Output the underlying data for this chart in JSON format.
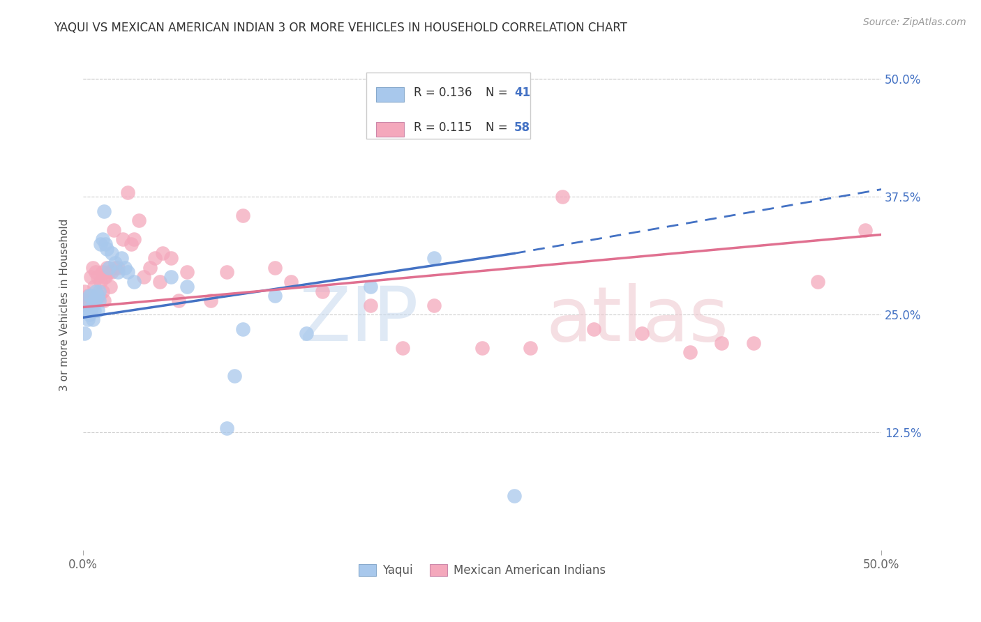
{
  "title": "YAQUI VS MEXICAN AMERICAN INDIAN 3 OR MORE VEHICLES IN HOUSEHOLD CORRELATION CHART",
  "source": "Source: ZipAtlas.com",
  "ylabel": "3 or more Vehicles in Household",
  "xlim": [
    0.0,
    0.5
  ],
  "ylim": [
    0.0,
    0.5
  ],
  "xtick_labels": [
    "0.0%",
    "50.0%"
  ],
  "ytick_labels_right": [
    "50.0%",
    "37.5%",
    "25.0%",
    "12.5%"
  ],
  "ytick_vals_right": [
    0.5,
    0.375,
    0.25,
    0.125
  ],
  "legend_label1": "Yaqui",
  "legend_label2": "Mexican American Indians",
  "color_blue": "#A8C8EC",
  "color_pink": "#F4A8BC",
  "color_blue_line": "#4472C4",
  "color_pink_line": "#E07090",
  "color_axis_text": "#4472C4",
  "background": "#FFFFFF",
  "yaqui_x": [
    0.001,
    0.002,
    0.003,
    0.003,
    0.004,
    0.004,
    0.005,
    0.005,
    0.006,
    0.006,
    0.007,
    0.007,
    0.008,
    0.008,
    0.009,
    0.009,
    0.01,
    0.01,
    0.011,
    0.012,
    0.013,
    0.014,
    0.015,
    0.016,
    0.018,
    0.02,
    0.022,
    0.024,
    0.026,
    0.028,
    0.032,
    0.055,
    0.065,
    0.09,
    0.095,
    0.1,
    0.12,
    0.14,
    0.18,
    0.22,
    0.27
  ],
  "yaqui_y": [
    0.23,
    0.26,
    0.255,
    0.245,
    0.27,
    0.25,
    0.27,
    0.255,
    0.26,
    0.245,
    0.255,
    0.265,
    0.275,
    0.265,
    0.255,
    0.27,
    0.275,
    0.265,
    0.325,
    0.33,
    0.36,
    0.325,
    0.32,
    0.3,
    0.315,
    0.305,
    0.295,
    0.31,
    0.3,
    0.295,
    0.285,
    0.29,
    0.28,
    0.13,
    0.185,
    0.235,
    0.27,
    0.23,
    0.28,
    0.31,
    0.058
  ],
  "mai_x": [
    0.001,
    0.002,
    0.003,
    0.004,
    0.005,
    0.005,
    0.006,
    0.007,
    0.008,
    0.008,
    0.009,
    0.009,
    0.01,
    0.011,
    0.012,
    0.012,
    0.013,
    0.013,
    0.014,
    0.015,
    0.016,
    0.017,
    0.018,
    0.019,
    0.02,
    0.022,
    0.025,
    0.028,
    0.03,
    0.032,
    0.035,
    0.038,
    0.042,
    0.045,
    0.048,
    0.05,
    0.055,
    0.06,
    0.065,
    0.08,
    0.09,
    0.1,
    0.12,
    0.13,
    0.15,
    0.18,
    0.2,
    0.22,
    0.25,
    0.28,
    0.3,
    0.32,
    0.35,
    0.38,
    0.4,
    0.42,
    0.46,
    0.49
  ],
  "mai_y": [
    0.275,
    0.26,
    0.27,
    0.265,
    0.29,
    0.265,
    0.3,
    0.28,
    0.27,
    0.295,
    0.27,
    0.29,
    0.27,
    0.285,
    0.295,
    0.275,
    0.29,
    0.265,
    0.29,
    0.3,
    0.295,
    0.28,
    0.295,
    0.34,
    0.3,
    0.3,
    0.33,
    0.38,
    0.325,
    0.33,
    0.35,
    0.29,
    0.3,
    0.31,
    0.285,
    0.315,
    0.31,
    0.265,
    0.295,
    0.265,
    0.295,
    0.355,
    0.3,
    0.285,
    0.275,
    0.26,
    0.215,
    0.26,
    0.215,
    0.215,
    0.375,
    0.235,
    0.23,
    0.21,
    0.22,
    0.22,
    0.285,
    0.34
  ],
  "trend_blue_x0": 0.0,
  "trend_blue_y0": 0.247,
  "trend_blue_x_solid_end": 0.27,
  "trend_blue_y_solid_end": 0.315,
  "trend_blue_x_dash_end": 0.5,
  "trend_blue_y_dash_end": 0.383,
  "trend_pink_x0": 0.0,
  "trend_pink_y0": 0.258,
  "trend_pink_x1": 0.5,
  "trend_pink_y1": 0.335
}
